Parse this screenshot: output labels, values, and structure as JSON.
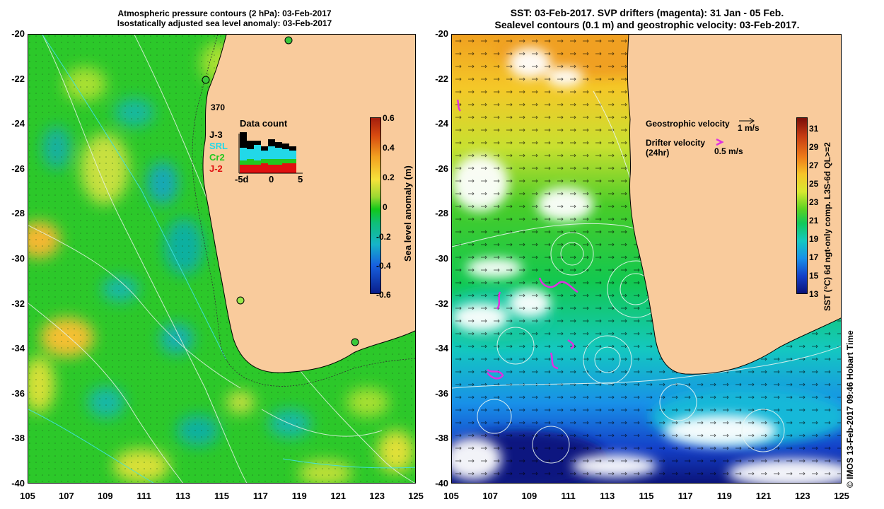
{
  "left_panel": {
    "title_line1": "Atmospheric pressure contours (2 hPa): 03-Feb-2017",
    "title_line2": "Isostatically adjusted sea level anomaly: 03-Feb-2017",
    "colorbar_label": "Sea level anomaly (m)",
    "colorbar_ticks": [
      "0.6",
      "0.4",
      "0.2",
      "0",
      "-0.2",
      "-0.4",
      "-0.6"
    ],
    "data_count": {
      "title": "Data count",
      "max_label": "370",
      "series": [
        {
          "name": "J-3",
          "color": "#000000"
        },
        {
          "name": "SRL",
          "color": "#22d8e8"
        },
        {
          "name": "Cr2",
          "color": "#22c81e"
        },
        {
          "name": "J-2",
          "color": "#e01010"
        }
      ],
      "x_ticks": [
        "-5d",
        "0",
        "5"
      ]
    }
  },
  "right_panel": {
    "title_line1": "SST: 03-Feb-2017. SVP drifters (magenta): 31 Jan - 05 Feb.",
    "title_line2": "Sealevel contours (0.1 m) and geostrophic velocity: 03-Feb-2017.",
    "colorbar_label": "SST (°C) 6d ngt-only comp. L3S-6d QL>=2",
    "colorbar_ticks": [
      "31",
      "29",
      "27",
      "25",
      "23",
      "21",
      "19",
      "17",
      "15",
      "13"
    ],
    "geostrophic_label": "Geostrophic velocity",
    "geostrophic_scale": "1 m/s",
    "drifter_label_line1": "Drifter velocity",
    "drifter_label_line2": "(24hr)",
    "drifter_scale": "0.5 m/s",
    "credit": "© IMOS 13-Feb-2017 09:46 Hobart Time"
  },
  "axes": {
    "y_ticks": [
      "-20",
      "-22",
      "-24",
      "-26",
      "-28",
      "-30",
      "-32",
      "-34",
      "-36",
      "-38",
      "-40"
    ],
    "x_ticks": [
      "105",
      "107",
      "109",
      "111",
      "113",
      "115",
      "117",
      "119",
      "121",
      "123",
      "125"
    ]
  },
  "colors": {
    "land": "#f9cb9c",
    "ocean_green": "#2cc82a",
    "coast": "#000000",
    "drifter": "#e030e0"
  }
}
